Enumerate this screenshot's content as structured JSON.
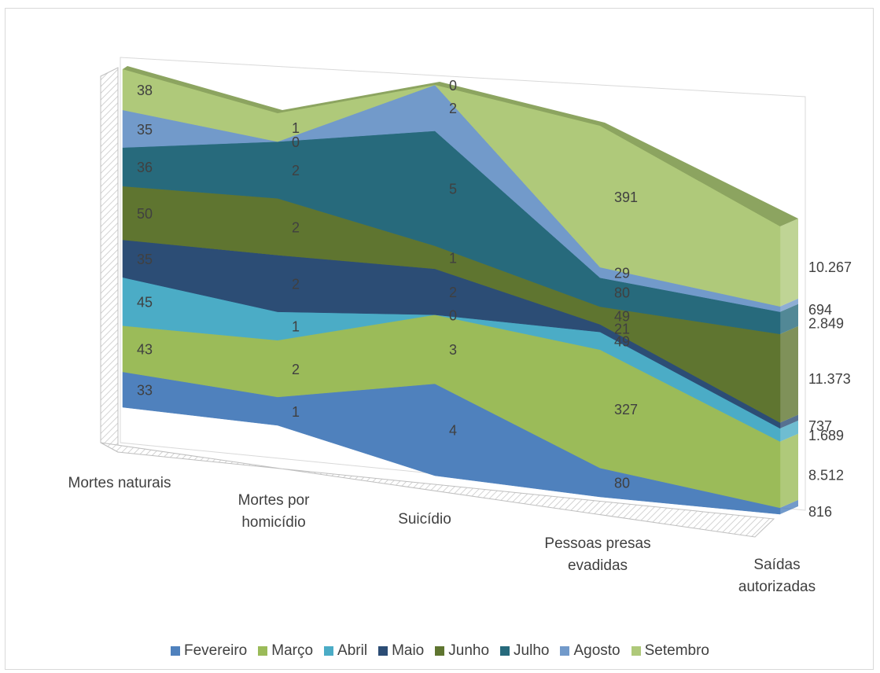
{
  "chart_data": {
    "type": "area",
    "title": "",
    "categories": [
      "Mortes naturais",
      "Mortes por homicídio",
      "Suicídio",
      "Pessoas presas evadidas",
      "Saídas autorizadas"
    ],
    "series": [
      {
        "name": "Fevereiro",
        "color": "#4f81bd",
        "values": [
          33,
          1,
          4,
          80,
          816
        ],
        "labels": [
          "33",
          "1",
          "4",
          "80",
          "816"
        ]
      },
      {
        "name": "Março",
        "color": "#9bbb59",
        "values": [
          43,
          2,
          3,
          327,
          8512
        ],
        "labels": [
          "43",
          "2",
          "3",
          "327",
          "8.512"
        ]
      },
      {
        "name": "Abril",
        "color": "#4bacc6",
        "values": [
          45,
          1,
          0,
          49,
          1689
        ],
        "labels": [
          "45",
          "1",
          "0",
          "49",
          "1.689"
        ]
      },
      {
        "name": "Maio",
        "color": "#2c4d75",
        "values": [
          35,
          2,
          2,
          21,
          737
        ],
        "labels": [
          "35",
          "2",
          "2",
          "21",
          "737"
        ]
      },
      {
        "name": "Junho",
        "color": "#5f7530",
        "values": [
          50,
          2,
          1,
          49,
          11373
        ],
        "labels": [
          "50",
          "2",
          "1",
          "49",
          "11.373"
        ]
      },
      {
        "name": "Julho",
        "color": "#276a7c",
        "values": [
          36,
          2,
          5,
          80,
          2849
        ],
        "labels": [
          "36",
          "2",
          "5",
          "80",
          "2.849"
        ]
      },
      {
        "name": "Agosto",
        "color": "#729aca",
        "values": [
          35,
          0,
          2,
          29,
          694
        ],
        "labels": [
          "35",
          "0",
          "2",
          "29",
          "694"
        ]
      },
      {
        "name": "Setembro",
        "color": "#afc97a",
        "values": [
          38,
          1,
          0,
          391,
          10267
        ],
        "labels": [
          "38",
          "1",
          "0",
          "391",
          "10.267"
        ]
      }
    ],
    "stacking": "percent",
    "grid": true,
    "legend_position": "bottom",
    "style": "3d"
  }
}
